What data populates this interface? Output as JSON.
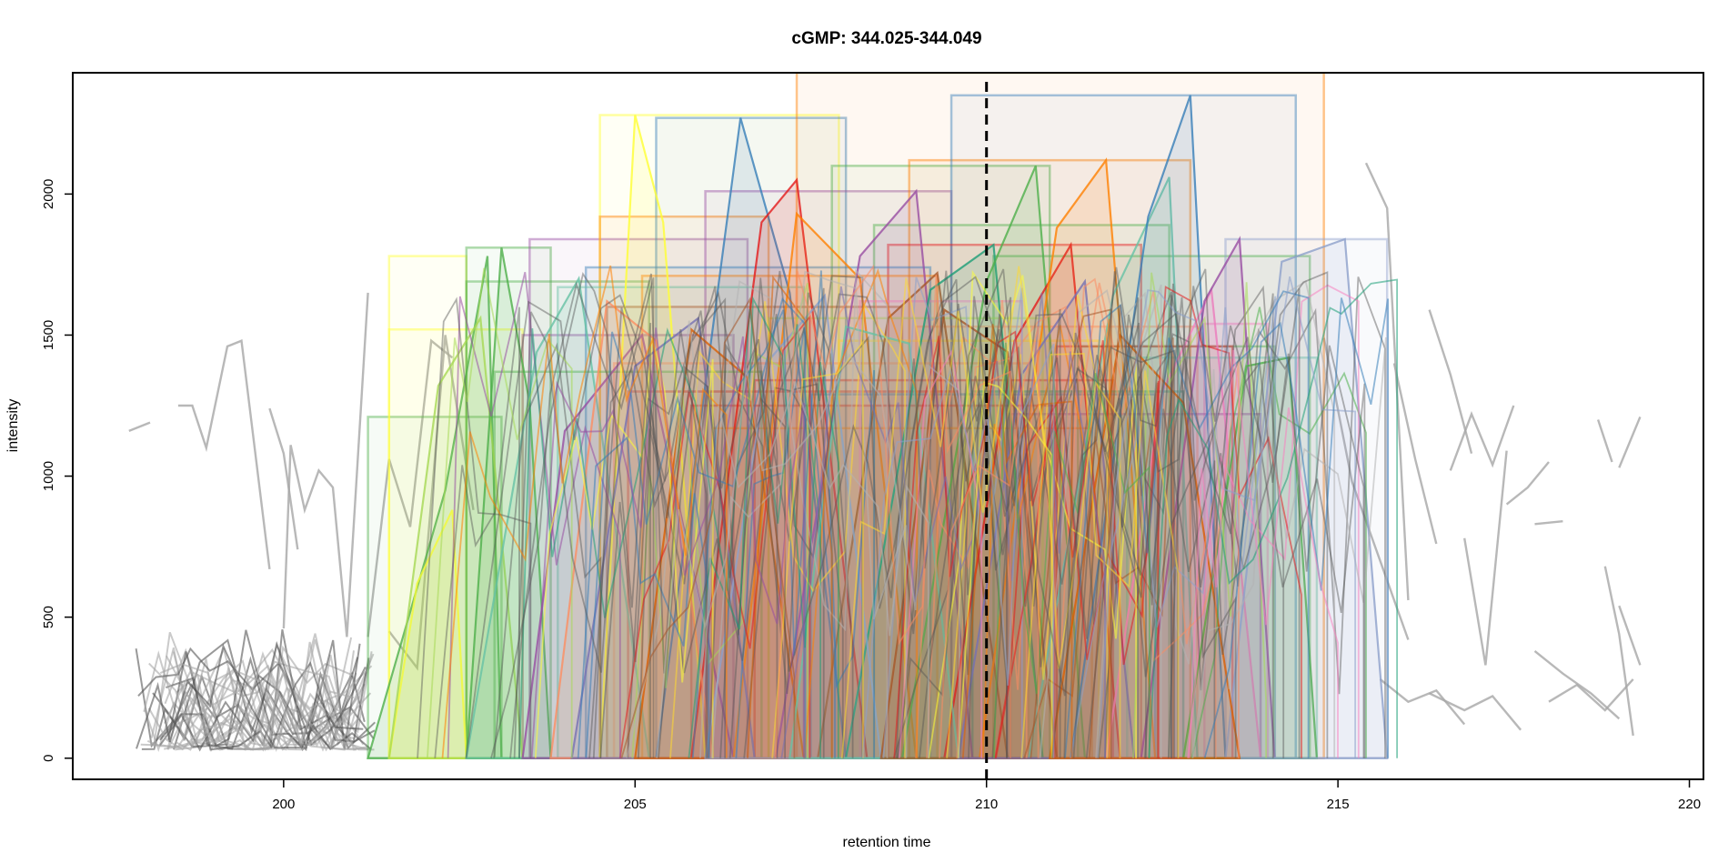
{
  "chart_data": {
    "type": "line",
    "title": "cGMP: 344.025-344.049",
    "xlabel": "retention time",
    "ylabel": "intensity",
    "xlim": [
      197,
      220.2
    ],
    "ylim": [
      -75,
      2430
    ],
    "x_ticks": [
      200,
      205,
      210,
      215,
      220
    ],
    "y_ticks": [
      0,
      500,
      1000,
      1500,
      2000
    ],
    "x_tick_labels": [
      "200",
      "205",
      "210",
      "215",
      "220"
    ],
    "y_tick_labels": [
      "0",
      "500",
      "1000",
      "1500",
      "2000"
    ],
    "grid": false,
    "legend": "none",
    "reference_line": {
      "x": 210,
      "style": "dashed",
      "color": "#000000"
    },
    "colors": {
      "background_trace": "#a6a6a6",
      "dark_trace": "#555555",
      "palette": [
        "#e41a1c",
        "#377eb8",
        "#4daf4a",
        "#984ea3",
        "#ff7f00",
        "#ffff33",
        "#a65628",
        "#f781bf",
        "#66c2a5",
        "#fc8d62",
        "#8da0cb",
        "#a6d854",
        "#ffd92f",
        "#b3b3b3",
        "#1b9e77",
        "#d95f02",
        "#7570b3"
      ]
    },
    "background_traces": [
      {
        "x": [
          197.8,
          198.1
        ],
        "y": [
          1160,
          1190
        ]
      },
      {
        "x": [
          198.5,
          198.7,
          198.9,
          199.2,
          199.4,
          199.8
        ],
        "y": [
          1250,
          1250,
          1100,
          1460,
          1480,
          670
        ]
      },
      {
        "x": [
          199.8,
          200.0,
          200.2
        ],
        "y": [
          1240,
          1080,
          740
        ]
      },
      {
        "x": [
          200.0,
          200.1,
          200.3,
          200.5,
          200.7,
          200.9,
          201.2
        ],
        "y": [
          460,
          1110,
          880,
          1020,
          960,
          430,
          1650
        ]
      },
      {
        "x": [
          201.2,
          201.5,
          201.8,
          202.1,
          202.4
        ],
        "y": [
          430,
          1060,
          820,
          1480,
          1420
        ]
      },
      {
        "x": [
          201.5,
          201.9,
          202.3,
          202.7
        ],
        "y": [
          450,
          320,
          1500,
          880
        ]
      },
      {
        "x": [
          215.4,
          215.7,
          216.0
        ],
        "y": [
          2110,
          1950,
          560
        ]
      },
      {
        "x": [
          215.8,
          216.1,
          216.4
        ],
        "y": [
          1400,
          1060,
          760
        ]
      },
      {
        "x": [
          216.3,
          216.6,
          216.9
        ],
        "y": [
          1590,
          1360,
          1080
        ]
      },
      {
        "x": [
          216.6,
          216.9,
          217.2,
          217.5
        ],
        "y": [
          1020,
          1220,
          1040,
          1250
        ]
      },
      {
        "x": [
          216.8,
          217.1,
          217.4
        ],
        "y": [
          780,
          330,
          1090
        ]
      },
      {
        "x": [
          217.4,
          217.7,
          218.0
        ],
        "y": [
          900,
          960,
          1050
        ]
      },
      {
        "x": [
          217.8,
          218.2
        ],
        "y": [
          830,
          840
        ]
      },
      {
        "x": [
          218.7,
          218.9
        ],
        "y": [
          1200,
          1050
        ]
      },
      {
        "x": [
          219.0,
          219.3
        ],
        "y": [
          1030,
          1210
        ]
      },
      {
        "x": [
          218.8,
          219.0,
          219.2
        ],
        "y": [
          680,
          440,
          80
        ]
      },
      {
        "x": [
          219.0,
          219.3
        ],
        "y": [
          540,
          330
        ]
      },
      {
        "x": [
          216.3,
          216.8,
          217.2,
          217.6
        ],
        "y": [
          230,
          170,
          220,
          100
        ]
      },
      {
        "x": [
          218.0,
          218.4,
          218.8,
          219.2
        ],
        "y": [
          200,
          260,
          170,
          280
        ]
      },
      {
        "x": [
          215.6,
          216.0,
          216.4,
          216.8
        ],
        "y": [
          280,
          200,
          240,
          120
        ]
      },
      {
        "x": [
          217.8,
          218.2,
          218.6,
          219.0
        ],
        "y": [
          380,
          300,
          230,
          140
        ]
      },
      {
        "x": [
          214.8,
          215.2,
          215.6,
          216.0
        ],
        "y": [
          1490,
          980,
          700,
          420
        ]
      }
    ],
    "noise_band": {
      "x_range": [
        197.9,
        201.3
      ],
      "y_range": [
        30,
        460
      ]
    },
    "peak_region": {
      "x_range": [
        201.2,
        215.7
      ],
      "y_max": 2280
    },
    "peak_boxes": [
      {
        "x0": 201.2,
        "x1": 203.1,
        "y1": 1210,
        "color": "#4daf4a"
      },
      {
        "x0": 201.5,
        "x1": 202.6,
        "y1": 1780,
        "color": "#ffff33"
      },
      {
        "x0": 201.5,
        "x1": 203.4,
        "y1": 1520,
        "color": "#ffff33"
      },
      {
        "x0": 202.6,
        "x1": 203.8,
        "y1": 1810,
        "color": "#4daf4a"
      },
      {
        "x0": 202.6,
        "x1": 205.2,
        "y1": 1690,
        "color": "#4daf4a"
      },
      {
        "x0": 203.4,
        "x1": 206.4,
        "y1": 1500,
        "color": "#984ea3"
      },
      {
        "x0": 203.5,
        "x1": 206.6,
        "y1": 1840,
        "color": "#984ea3"
      },
      {
        "x0": 204.5,
        "x1": 207.9,
        "y1": 2280,
        "color": "#ffff33"
      },
      {
        "x0": 204.5,
        "x1": 206.9,
        "y1": 1920,
        "color": "#ff7f00"
      },
      {
        "x0": 205.3,
        "x1": 208.0,
        "y1": 2270,
        "color": "#377eb8"
      },
      {
        "x0": 206.0,
        "x1": 209.5,
        "y1": 2010,
        "color": "#984ea3"
      },
      {
        "x0": 207.3,
        "x1": 214.8,
        "y1": 2430,
        "color": "#ff7f00"
      },
      {
        "x0": 207.8,
        "x1": 210.9,
        "y1": 2100,
        "color": "#4daf4a"
      },
      {
        "x0": 208.9,
        "x1": 212.9,
        "y1": 2120,
        "color": "#ff7f00"
      },
      {
        "x0": 209.5,
        "x1": 214.4,
        "y1": 2350,
        "color": "#377eb8"
      },
      {
        "x0": 208.4,
        "x1": 212.6,
        "y1": 1890,
        "color": "#4daf4a"
      },
      {
        "x0": 208.6,
        "x1": 212.2,
        "y1": 1820,
        "color": "#e41a1c"
      },
      {
        "x0": 210.1,
        "x1": 214.6,
        "y1": 1780,
        "color": "#4daf4a"
      },
      {
        "x0": 213.4,
        "x1": 215.7,
        "y1": 1840,
        "color": "#8da0cb"
      },
      {
        "x0": 213.1,
        "x1": 214.0,
        "y1": 1540,
        "color": "#f781bf"
      },
      {
        "x0": 211.3,
        "x1": 214.1,
        "y1": 1460,
        "color": "#4daf4a"
      },
      {
        "x0": 204.9,
        "x1": 209.6,
        "y1": 1300,
        "color": "#e41a1c"
      },
      {
        "x0": 205.8,
        "x1": 211.0,
        "y1": 1250,
        "color": "#e41a1c"
      },
      {
        "x0": 204.3,
        "x1": 209.2,
        "y1": 1740,
        "color": "#377eb8"
      },
      {
        "x0": 204.6,
        "x1": 208.8,
        "y1": 1600,
        "color": "#a65628"
      },
      {
        "x0": 206.1,
        "x1": 211.5,
        "y1": 1170,
        "color": "#ff7f00"
      },
      {
        "x0": 203.9,
        "x1": 207.4,
        "y1": 1670,
        "color": "#66c2a5"
      },
      {
        "x0": 204.7,
        "x1": 210.6,
        "y1": 1400,
        "color": "#fc8d62"
      },
      {
        "x0": 206.7,
        "x1": 211.8,
        "y1": 1340,
        "color": "#e41a1c"
      },
      {
        "x0": 207.5,
        "x1": 212.4,
        "y1": 1290,
        "color": "#377eb8"
      },
      {
        "x0": 209.0,
        "x1": 213.0,
        "y1": 1530,
        "color": "#fc8d62"
      },
      {
        "x0": 210.3,
        "x1": 213.9,
        "y1": 1220,
        "color": "#984ea3"
      },
      {
        "x0": 211.0,
        "x1": 213.5,
        "y1": 1460,
        "color": "#e41a1c"
      },
      {
        "x0": 203.0,
        "x1": 206.8,
        "y1": 1370,
        "color": "#4daf4a"
      },
      {
        "x0": 205.1,
        "x1": 209.3,
        "y1": 1710,
        "color": "#ff7f00"
      },
      {
        "x0": 206.9,
        "x1": 210.8,
        "y1": 1560,
        "color": "#a6d854"
      },
      {
        "x0": 207.9,
        "x1": 211.6,
        "y1": 1480,
        "color": "#ffd92f"
      },
      {
        "x0": 208.2,
        "x1": 210.5,
        "y1": 1620,
        "color": "#f781bf"
      },
      {
        "x0": 212.0,
        "x1": 214.7,
        "y1": 1420,
        "color": "#66c2a5"
      },
      {
        "x0": 209.8,
        "x1": 212.8,
        "y1": 1300,
        "color": "#1b9e77"
      }
    ],
    "peak_series": [
      {
        "x": [
          201.2,
          202.3,
          202.9,
          203.1
        ],
        "y": [
          0,
          950,
          1780,
          0
        ],
        "color": "#4daf4a"
      },
      {
        "x": [
          201.5,
          201.9,
          202.4,
          202.6
        ],
        "y": [
          0,
          620,
          880,
          0
        ],
        "color": "#ffff33"
      },
      {
        "x": [
          201.5,
          202.2,
          202.8,
          203.4
        ],
        "y": [
          0,
          1320,
          1560,
          0
        ],
        "color": "#a6d854"
      },
      {
        "x": [
          202.6,
          203.1,
          203.5,
          203.8
        ],
        "y": [
          0,
          1810,
          1260,
          0
        ],
        "color": "#4daf4a"
      },
      {
        "x": [
          202.6,
          203.6,
          204.2,
          205.2
        ],
        "y": [
          0,
          1440,
          1700,
          0
        ],
        "color": "#66c2a5"
      },
      {
        "x": [
          203.4,
          204.0,
          205.1,
          206.4
        ],
        "y": [
          0,
          1160,
          1500,
          0
        ],
        "color": "#984ea3"
      },
      {
        "x": [
          204.5,
          205.0,
          205.4,
          206.0
        ],
        "y": [
          0,
          2280,
          1900,
          0
        ],
        "color": "#ffff33"
      },
      {
        "x": [
          205.3,
          206.5,
          207.2,
          208.0
        ],
        "y": [
          0,
          2270,
          1650,
          0
        ],
        "color": "#377eb8"
      },
      {
        "x": [
          205.8,
          206.8,
          207.3,
          208.3
        ],
        "y": [
          0,
          1900,
          2050,
          0
        ],
        "color": "#e41a1c"
      },
      {
        "x": [
          206.4,
          207.3,
          208.2,
          209.0
        ],
        "y": [
          0,
          1930,
          1700,
          0
        ],
        "color": "#ff7f00"
      },
      {
        "x": [
          207.0,
          208.2,
          209.0,
          209.8
        ],
        "y": [
          0,
          1780,
          2010,
          0
        ],
        "color": "#984ea3"
      },
      {
        "x": [
          207.6,
          208.6,
          209.3,
          210.3
        ],
        "y": [
          0,
          1560,
          1720,
          0
        ],
        "color": "#a65628"
      },
      {
        "x": [
          208.0,
          209.2,
          210.1,
          210.8
        ],
        "y": [
          0,
          1660,
          1820,
          0
        ],
        "color": "#1b9e77"
      },
      {
        "x": [
          208.8,
          210.0,
          210.7,
          211.4
        ],
        "y": [
          0,
          1690,
          2100,
          0
        ],
        "color": "#4daf4a"
      },
      {
        "x": [
          209.4,
          210.4,
          211.2,
          211.9
        ],
        "y": [
          0,
          1480,
          1820,
          0
        ],
        "color": "#e41a1c"
      },
      {
        "x": [
          209.9,
          211.0,
          211.7,
          212.4
        ],
        "y": [
          0,
          1880,
          2120,
          0
        ],
        "color": "#ff7f00"
      },
      {
        "x": [
          210.6,
          211.8,
          212.6,
          213.0
        ],
        "y": [
          0,
          1640,
          2060,
          0
        ],
        "color": "#66c2a5"
      },
      {
        "x": [
          211.2,
          212.3,
          212.9,
          213.4
        ],
        "y": [
          0,
          1920,
          2350,
          0
        ],
        "color": "#377eb8"
      },
      {
        "x": [
          211.7,
          212.5,
          213.2,
          213.9
        ],
        "y": [
          0,
          1300,
          1660,
          0
        ],
        "color": "#f781bf"
      },
      {
        "x": [
          212.2,
          213.1,
          213.6,
          214.1
        ],
        "y": [
          0,
          1620,
          1840,
          0
        ],
        "color": "#984ea3"
      },
      {
        "x": [
          212.8,
          213.7,
          214.3,
          214.7
        ],
        "y": [
          0,
          1390,
          1420,
          0
        ],
        "color": "#4daf4a"
      },
      {
        "x": [
          213.4,
          214.2,
          215.1,
          215.7
        ],
        "y": [
          0,
          1760,
          1840,
          0
        ],
        "color": "#8da0cb"
      },
      {
        "x": [
          203.8,
          204.6,
          205.3,
          206.1
        ],
        "y": [
          0,
          1620,
          1480,
          0
        ],
        "color": "#fc8d62"
      },
      {
        "x": [
          204.1,
          205.0,
          205.9,
          206.7
        ],
        "y": [
          0,
          1390,
          1560,
          0
        ],
        "color": "#7570b3"
      },
      {
        "x": [
          205.0,
          205.8,
          206.6,
          207.4
        ],
        "y": [
          0,
          1520,
          1350,
          0
        ],
        "color": "#d95f02"
      },
      {
        "x": [
          206.0,
          206.9,
          207.7,
          208.5
        ],
        "y": [
          0,
          1410,
          1640,
          0
        ],
        "color": "#8da0cb"
      },
      {
        "x": [
          207.2,
          208.0,
          208.9,
          209.6
        ],
        "y": [
          0,
          1530,
          1470,
          0
        ],
        "color": "#66c2a5"
      },
      {
        "x": [
          208.5,
          209.4,
          210.3,
          211.0
        ],
        "y": [
          0,
          1590,
          1440,
          0
        ],
        "color": "#a65628"
      },
      {
        "x": [
          209.6,
          210.5,
          211.4,
          212.1
        ],
        "y": [
          0,
          1360,
          1690,
          0
        ],
        "color": "#7570b3"
      },
      {
        "x": [
          210.9,
          211.9,
          212.8,
          213.6
        ],
        "y": [
          0,
          1500,
          1260,
          0
        ],
        "color": "#d95f02"
      }
    ]
  }
}
